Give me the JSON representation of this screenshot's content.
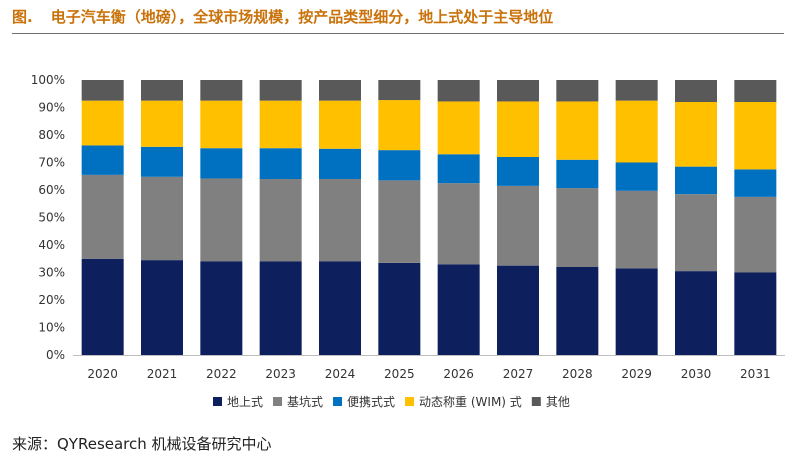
{
  "figure": {
    "label": "图.",
    "title": "电子汽车衡（地磅），全球市场规模，按产品类型细分，地上式处于主导地位"
  },
  "source": "来源：QYResearch 机械设备研究中心",
  "chart_data": {
    "type": "bar",
    "stacked": true,
    "percent": true,
    "categories": [
      "2020",
      "2021",
      "2022",
      "2023",
      "2024",
      "2025",
      "2026",
      "2027",
      "2028",
      "2029",
      "2030",
      "2031"
    ],
    "ylim": [
      0,
      100
    ],
    "ytick_labels": [
      "0%",
      "10%",
      "20%",
      "30%",
      "40%",
      "50%",
      "60%",
      "70%",
      "80%",
      "90%",
      "100%"
    ],
    "legend_position": "bottom",
    "series": [
      {
        "name": "地上式",
        "color": "#0d1f5c",
        "values": [
          35,
          34.5,
          34,
          34,
          34,
          33.5,
          33,
          32.5,
          32,
          31.5,
          30.5,
          30
        ]
      },
      {
        "name": "基坑式",
        "color": "#808080",
        "values": [
          30.5,
          30.3,
          30.2,
          30,
          30,
          30,
          29.5,
          29,
          28.7,
          28.2,
          28,
          27.5
        ]
      },
      {
        "name": "便携式式",
        "color": "#0070c0",
        "values": [
          10.7,
          10.9,
          11,
          11.2,
          11,
          11,
          10.5,
          10.5,
          10.3,
          10.3,
          10,
          10
        ]
      },
      {
        "name": "动态称重 (WIM) 式",
        "color": "#ffc000",
        "values": [
          16.3,
          16.8,
          17.3,
          17.3,
          17.5,
          18.2,
          19.2,
          20.2,
          21.2,
          22.5,
          23.5,
          24.5
        ]
      },
      {
        "name": "其他",
        "color": "#595959",
        "values": [
          7.5,
          7.5,
          7.5,
          7.5,
          7.5,
          7.3,
          7.8,
          7.8,
          7.8,
          7.5,
          8,
          8
        ]
      }
    ]
  }
}
